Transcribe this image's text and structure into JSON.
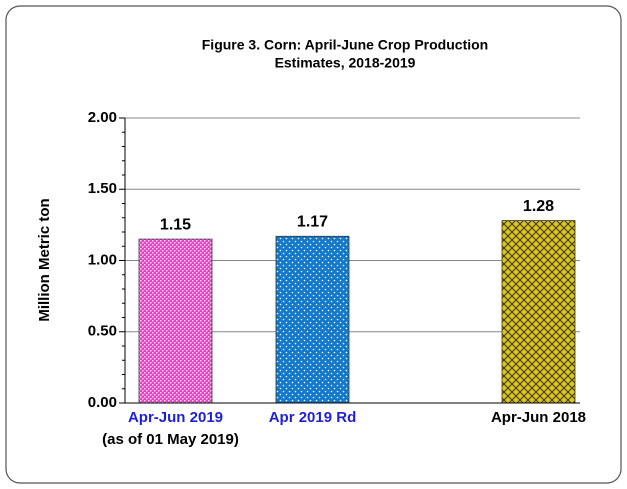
{
  "chart_data": {
    "type": "bar",
    "title": [
      "Figure 3. Corn:  April-June Crop Production",
      "Estimates, 2018-2019"
    ],
    "y_label": "Million Metric ton",
    "categories": [
      "Apr-Jun 2019",
      "Apr 2019 Rd",
      "Apr-Jun 2018"
    ],
    "category_label_colors": [
      "#1f1fd6",
      "#1f1fd6",
      "#000000"
    ],
    "category_notes": [
      "(as of 01 May 2019)"
    ],
    "values": [
      1.15,
      1.17,
      1.28
    ],
    "colors": [
      "#e83fc6",
      "#1479c8",
      "#d8c51e"
    ],
    "ylim": [
      0,
      2
    ],
    "yticks": [
      {
        "value": 0,
        "label": "0.00"
      },
      {
        "value": 0.5,
        "label": "0.50"
      },
      {
        "value": 1,
        "label": "1.00"
      },
      {
        "value": 1.5,
        "label": "1.50"
      },
      {
        "value": 2,
        "label": "2.00"
      }
    ],
    "yminorticks": [
      0.1,
      0.2,
      0.3,
      0.4,
      0.6,
      0.7,
      0.8,
      0.9,
      1.1,
      1.2,
      1.3,
      1.4,
      1.6,
      1.7,
      1.8,
      1.9
    ],
    "grid": true
  }
}
